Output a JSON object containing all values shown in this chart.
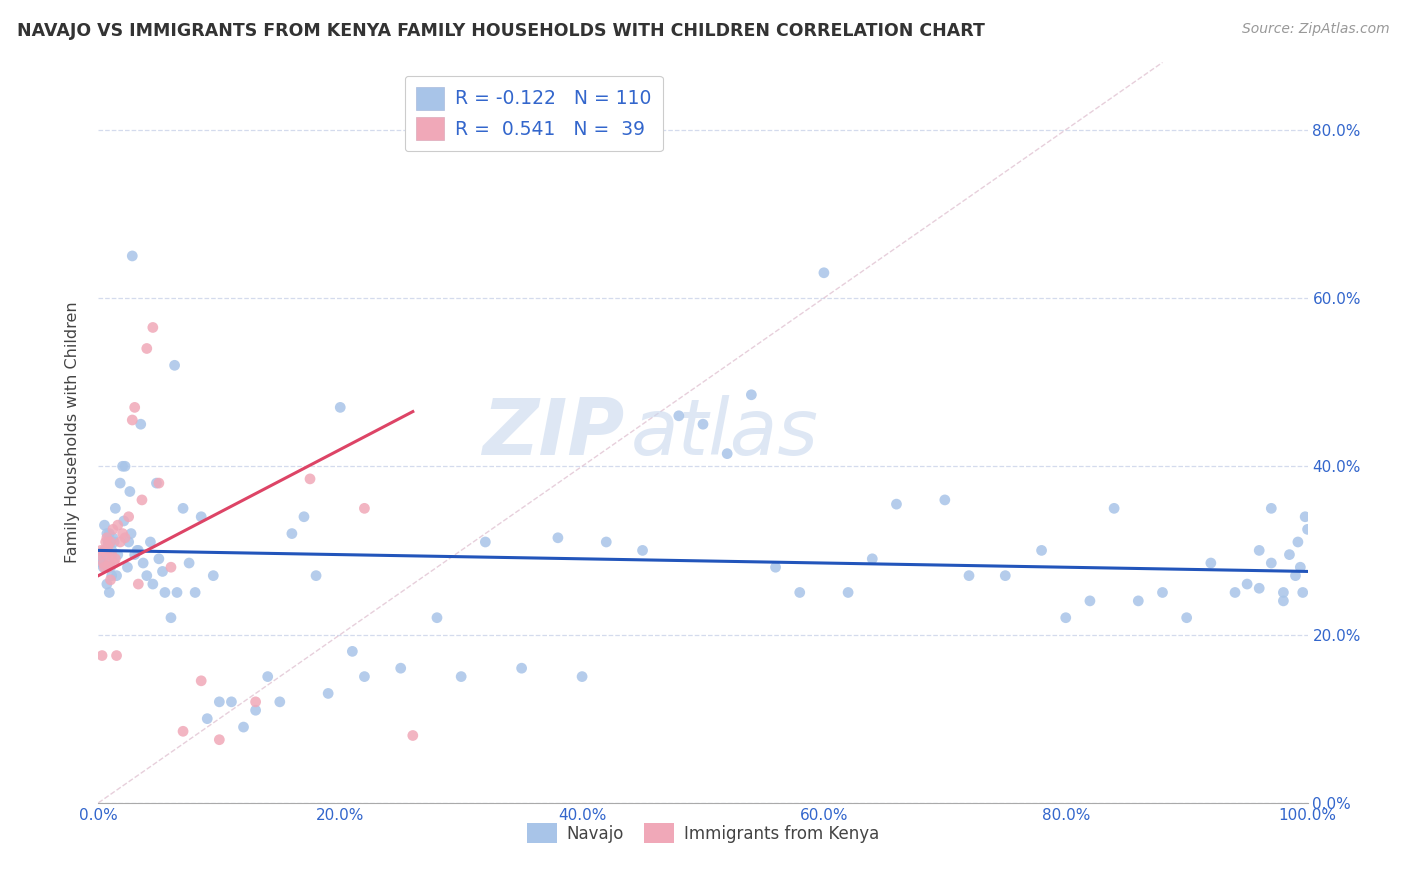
{
  "title": "NAVAJO VS IMMIGRANTS FROM KENYA FAMILY HOUSEHOLDS WITH CHILDREN CORRELATION CHART",
  "source": "Source: ZipAtlas.com",
  "navajo_R": -0.122,
  "navajo_N": 110,
  "kenya_R": 0.541,
  "kenya_N": 39,
  "navajo_color": "#a8c4e8",
  "kenya_color": "#f0a8b8",
  "navajo_line_color": "#2255bb",
  "kenya_line_color": "#dd4466",
  "diagonal_color": "#cccccc",
  "watermark_color": "#c8d8ee",
  "x_tick_positions": [
    0.0,
    0.2,
    0.4,
    0.6,
    0.8,
    1.0
  ],
  "x_tick_labels": [
    "0.0%",
    "20.0%",
    "40.0%",
    "60.0%",
    "80.0%",
    "100.0%"
  ],
  "y_tick_positions": [
    0.0,
    0.2,
    0.4,
    0.6,
    0.8
  ],
  "y_tick_labels": [
    "0.0%",
    "20.0%",
    "40.0%",
    "60.0%",
    "80.0%"
  ],
  "xlim": [
    0.0,
    1.0
  ],
  "ylim": [
    0.0,
    0.88
  ],
  "navajo_x": [
    0.001,
    0.002,
    0.003,
    0.004,
    0.005,
    0.005,
    0.006,
    0.007,
    0.007,
    0.008,
    0.008,
    0.009,
    0.009,
    0.01,
    0.01,
    0.011,
    0.011,
    0.012,
    0.013,
    0.014,
    0.015,
    0.016,
    0.018,
    0.02,
    0.021,
    0.022,
    0.024,
    0.025,
    0.026,
    0.027,
    0.028,
    0.03,
    0.032,
    0.033,
    0.035,
    0.037,
    0.04,
    0.043,
    0.045,
    0.048,
    0.05,
    0.053,
    0.055,
    0.06,
    0.063,
    0.065,
    0.07,
    0.075,
    0.08,
    0.085,
    0.09,
    0.095,
    0.1,
    0.11,
    0.12,
    0.13,
    0.14,
    0.15,
    0.16,
    0.17,
    0.18,
    0.19,
    0.2,
    0.21,
    0.22,
    0.25,
    0.28,
    0.3,
    0.32,
    0.35,
    0.38,
    0.4,
    0.42,
    0.45,
    0.48,
    0.5,
    0.52,
    0.54,
    0.56,
    0.58,
    0.6,
    0.62,
    0.64,
    0.66,
    0.7,
    0.72,
    0.75,
    0.78,
    0.8,
    0.82,
    0.84,
    0.86,
    0.88,
    0.9,
    0.92,
    0.94,
    0.96,
    0.97,
    0.98,
    0.99,
    0.992,
    0.994,
    0.996,
    0.998,
    1.0,
    0.95,
    0.96,
    0.97,
    0.98,
    0.985
  ],
  "navajo_y": [
    0.295,
    0.29,
    0.285,
    0.28,
    0.33,
    0.3,
    0.29,
    0.26,
    0.32,
    0.31,
    0.28,
    0.25,
    0.32,
    0.31,
    0.28,
    0.27,
    0.3,
    0.315,
    0.31,
    0.35,
    0.27,
    0.295,
    0.38,
    0.4,
    0.335,
    0.4,
    0.28,
    0.31,
    0.37,
    0.32,
    0.65,
    0.295,
    0.3,
    0.3,
    0.45,
    0.285,
    0.27,
    0.31,
    0.26,
    0.38,
    0.29,
    0.275,
    0.25,
    0.22,
    0.52,
    0.25,
    0.35,
    0.285,
    0.25,
    0.34,
    0.1,
    0.27,
    0.12,
    0.12,
    0.09,
    0.11,
    0.15,
    0.12,
    0.32,
    0.34,
    0.27,
    0.13,
    0.47,
    0.18,
    0.15,
    0.16,
    0.22,
    0.15,
    0.31,
    0.16,
    0.315,
    0.15,
    0.31,
    0.3,
    0.46,
    0.45,
    0.415,
    0.485,
    0.28,
    0.25,
    0.63,
    0.25,
    0.29,
    0.355,
    0.36,
    0.27,
    0.27,
    0.3,
    0.22,
    0.24,
    0.35,
    0.24,
    0.25,
    0.22,
    0.285,
    0.25,
    0.3,
    0.35,
    0.24,
    0.27,
    0.31,
    0.28,
    0.25,
    0.34,
    0.325,
    0.26,
    0.255,
    0.285,
    0.25,
    0.295
  ],
  "kenya_x": [
    0.001,
    0.002,
    0.003,
    0.004,
    0.005,
    0.005,
    0.006,
    0.007,
    0.007,
    0.008,
    0.008,
    0.009,
    0.01,
    0.01,
    0.011,
    0.012,
    0.013,
    0.014,
    0.015,
    0.016,
    0.018,
    0.02,
    0.022,
    0.025,
    0.028,
    0.03,
    0.033,
    0.036,
    0.04,
    0.045,
    0.05,
    0.06,
    0.07,
    0.085,
    0.1,
    0.13,
    0.175,
    0.22,
    0.26
  ],
  "kenya_y": [
    0.295,
    0.3,
    0.175,
    0.285,
    0.28,
    0.3,
    0.31,
    0.295,
    0.315,
    0.305,
    0.28,
    0.285,
    0.265,
    0.31,
    0.295,
    0.325,
    0.285,
    0.29,
    0.175,
    0.33,
    0.31,
    0.32,
    0.315,
    0.34,
    0.455,
    0.47,
    0.26,
    0.36,
    0.54,
    0.565,
    0.38,
    0.28,
    0.085,
    0.145,
    0.075,
    0.12,
    0.385,
    0.35,
    0.08
  ],
  "kenya_trend_x": [
    0.0,
    0.26
  ],
  "kenya_trend_y": [
    0.27,
    0.465
  ],
  "navajo_trend_x": [
    0.0,
    1.0
  ],
  "navajo_trend_y": [
    0.3,
    0.275
  ]
}
